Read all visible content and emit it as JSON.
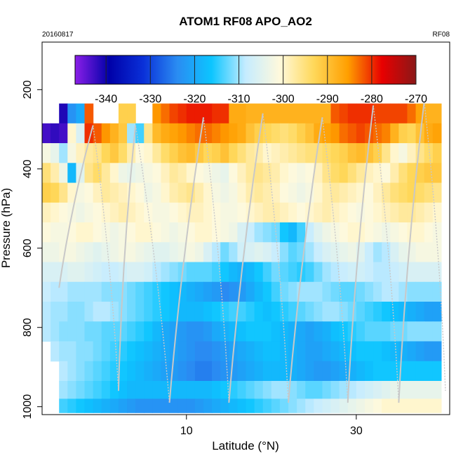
{
  "chart_data": {
    "type": "heatmap",
    "title": "ATOM1 RF08 APO_AO2",
    "left_label": "20160817",
    "right_label": "RF08",
    "xlabel": "Latitude (°N)",
    "ylabel": "Pressure (hPa)",
    "xlim": [
      -7,
      41
    ],
    "ylim": [
      1020,
      80
    ],
    "x_ticks": [
      10,
      30
    ],
    "y_ticks": [
      200,
      400,
      600,
      800,
      1000
    ],
    "colorbar": {
      "range": [
        -347,
        -270
      ],
      "ticks": [
        -340,
        -330,
        -320,
        -310,
        -300,
        -290,
        -280,
        -270
      ],
      "colors": [
        "#8b1fe8",
        "#0000a8",
        "#0a30d8",
        "#2a8cf2",
        "#0cc5ff",
        "#c5ecff",
        "#fff9dc",
        "#ffd85a",
        "#ff9f00",
        "#e80000",
        "#8a1818"
      ]
    },
    "pressure_bins": [
      210,
      260,
      310,
      360,
      410,
      460,
      510,
      560,
      610,
      660,
      710,
      760,
      810,
      860,
      910,
      960,
      1000
    ],
    "lat_step": 1,
    "lat_start": -7,
    "grid_cols": 47,
    "rows_values": [
      [
        null,
        null,
        null,
        null,
        null,
        null,
        null,
        null,
        null,
        null,
        null,
        null,
        null,
        null,
        null,
        null,
        null,
        null,
        null,
        null,
        null,
        null,
        null,
        null,
        null,
        null,
        null,
        null,
        null,
        null,
        null,
        null,
        null,
        null,
        null,
        null,
        null,
        null,
        null,
        null,
        null,
        null,
        null,
        null,
        null,
        null,
        null
      ],
      [
        null,
        null,
        -341,
        -323,
        -320,
        -282,
        null,
        null,
        null,
        -292,
        -292,
        null,
        null,
        -285,
        -283,
        -281,
        -280,
        -279,
        -279,
        -279,
        -280,
        -280,
        -287,
        -287,
        -288,
        -288,
        -288,
        -288,
        -288,
        -288,
        -288,
        -288,
        -288,
        -288,
        -282,
        -281,
        -280,
        -280,
        -280,
        -281,
        -281,
        -281,
        -281,
        -283,
        -286,
        -288,
        -288
      ],
      [
        -343,
        -342,
        -343,
        -300,
        -306,
        -280,
        -282,
        -285,
        -288,
        -291,
        -310,
        -314,
        -296,
        -289,
        -287,
        -286,
        -285,
        -284,
        -283,
        -283,
        -284,
        -285,
        -286,
        -287,
        -290,
        -292,
        -293,
        -294,
        -295,
        -294,
        -292,
        -290,
        -287,
        -286,
        -285,
        -283,
        -282,
        -281,
        -282,
        -283,
        -284,
        -288,
        -292,
        -293,
        -290,
        -287,
        -286
      ],
      [
        -302,
        -304,
        -310,
        -302,
        -299,
        -297,
        -296,
        -293,
        -291,
        -294,
        -298,
        -301,
        -300,
        -297,
        -294,
        -292,
        -290,
        -289,
        -291,
        -293,
        -292,
        -290,
        -293,
        -295,
        -297,
        -298,
        -300,
        -299,
        -298,
        -297,
        -296,
        -295,
        -295,
        -294,
        -293,
        -292,
        -290,
        -289,
        -290,
        -292,
        -296,
        -300,
        -302,
        -299,
        -296,
        -294,
        -292
      ],
      [
        -295,
        -298,
        -303,
        -318,
        -305,
        -296,
        -294,
        -297,
        -300,
        -303,
        -304,
        -303,
        -302,
        -301,
        -299,
        -297,
        -298,
        -300,
        -301,
        -302,
        -303,
        -304,
        -301,
        -299,
        -297,
        -296,
        -297,
        -298,
        -300,
        -301,
        -302,
        -301,
        -299,
        -296,
        -294,
        -293,
        -295,
        -297,
        -299,
        -300,
        -301,
        -298,
        -295,
        -293,
        -292,
        -291,
        -291
      ],
      [
        -292,
        -293,
        -296,
        -300,
        -302,
        -301,
        -299,
        -297,
        -298,
        -299,
        -300,
        -301,
        -303,
        -302,
        -300,
        -298,
        -297,
        -296,
        -298,
        -300,
        -302,
        -303,
        -302,
        -300,
        -298,
        -297,
        -298,
        -299,
        -301,
        -302,
        -303,
        -302,
        -300,
        -298,
        -297,
        -298,
        -299,
        -300,
        -301,
        -299,
        -297,
        -295,
        -294,
        -293,
        -294,
        -295,
        -296
      ],
      [
        -299,
        -300,
        -301,
        -302,
        -303,
        -302,
        -301,
        -300,
        -299,
        -298,
        -299,
        -300,
        -301,
        -302,
        -302,
        -301,
        -300,
        -299,
        -299,
        -300,
        -301,
        -302,
        -302,
        -301,
        -300,
        -299,
        -298,
        -298,
        -299,
        -300,
        -301,
        -300,
        -299,
        -298,
        -299,
        -300,
        -301,
        -302,
        -301,
        -300,
        -299,
        -298,
        -297,
        -297,
        -298,
        -299,
        -300
      ],
      [
        -301,
        -302,
        -302,
        -301,
        -300,
        -300,
        -301,
        -302,
        -303,
        -302,
        -301,
        -300,
        -300,
        -301,
        -302,
        -303,
        -302,
        -301,
        -300,
        -300,
        -301,
        -302,
        -303,
        -306,
        -308,
        -310,
        -311,
        -312,
        -316,
        -318,
        -314,
        -308,
        -305,
        -303,
        -302,
        -301,
        -300,
        -300,
        -301,
        -302,
        -303,
        -302,
        -301,
        -300,
        -300,
        -301,
        -302
      ],
      [
        -303,
        -303,
        -302,
        -302,
        -303,
        -304,
        -305,
        -304,
        -303,
        -302,
        -302,
        -303,
        -304,
        -305,
        -305,
        -304,
        -303,
        -302,
        -303,
        -306,
        -309,
        -312,
        -310,
        -307,
        -306,
        -305,
        -306,
        -308,
        -311,
        -313,
        -312,
        -310,
        -308,
        -306,
        -305,
        -304,
        -303,
        -305,
        -308,
        -310,
        -309,
        -306,
        -304,
        -303,
        -302,
        -302,
        -302
      ],
      [
        -306,
        -306,
        -306,
        -305,
        -305,
        -306,
        -307,
        -308,
        -308,
        -307,
        -306,
        -306,
        -307,
        -309,
        -310,
        -311,
        -312,
        -313,
        -313,
        -313,
        -314,
        -316,
        -318,
        -319,
        -318,
        -316,
        -314,
        -312,
        -313,
        -314,
        -315,
        -314,
        -312,
        -310,
        -309,
        -308,
        -307,
        -307,
        -308,
        -309,
        -309,
        -308,
        -307,
        -306,
        -306,
        -306,
        -306
      ],
      [
        -308,
        -309,
        -309,
        -310,
        -310,
        -310,
        -310,
        -311,
        -311,
        -311,
        -312,
        -313,
        -314,
        -315,
        -316,
        -317,
        -318,
        -319,
        -320,
        -321,
        -322,
        -324,
        -323,
        -322,
        -320,
        -318,
        -316,
        -314,
        -312,
        -311,
        -310,
        -310,
        -310,
        -311,
        -312,
        -313,
        -313,
        -312,
        -311,
        -310,
        -309,
        -309,
        -310,
        -311,
        -311,
        -311,
        -311
      ],
      [
        -309,
        -310,
        -310,
        -311,
        -311,
        -310,
        -309,
        -309,
        -310,
        -311,
        -312,
        -313,
        -314,
        -315,
        -316,
        -317,
        -318,
        -318,
        -318,
        -317,
        -316,
        -315,
        -314,
        -314,
        -315,
        -316,
        -317,
        -316,
        -315,
        -314,
        -313,
        -312,
        -311,
        -310,
        -310,
        -311,
        -312,
        -313,
        -314,
        -315,
        -316,
        -317,
        -318,
        -319,
        -320,
        -321,
        -321
      ],
      [
        -309,
        -310,
        -311,
        -311,
        -311,
        -312,
        -312,
        -313,
        -313,
        -313,
        -314,
        -315,
        -316,
        -318,
        -320,
        -321,
        -322,
        -323,
        -323,
        -322,
        -320,
        -319,
        -318,
        -317,
        -316,
        -316,
        -316,
        -317,
        -318,
        -319,
        -320,
        -321,
        -320,
        -319,
        -317,
        -316,
        -315,
        -314,
        -313,
        -313,
        -313,
        -312,
        -312,
        -311,
        -311,
        -311,
        -311
      ],
      [
        null,
        -309,
        -310,
        -310,
        -311,
        -311,
        -312,
        -313,
        -314,
        -315,
        -316,
        -317,
        -318,
        -319,
        -320,
        -321,
        -322,
        -323,
        -324,
        -324,
        -323,
        -322,
        -321,
        -320,
        -319,
        -318,
        -317,
        -317,
        -318,
        -319,
        -320,
        -321,
        -321,
        -320,
        -319,
        -318,
        -317,
        -316,
        -316,
        -316,
        -317,
        -318,
        -319,
        -320,
        -321,
        -322,
        -322
      ],
      [
        null,
        null,
        -309,
        -310,
        -311,
        -312,
        -313,
        -314,
        -315,
        -316,
        -317,
        -318,
        -319,
        -320,
        -321,
        -322,
        -323,
        -324,
        -325,
        -325,
        -324,
        -323,
        -322,
        -321,
        -320,
        -319,
        -318,
        -318,
        -318,
        -319,
        -320,
        -321,
        -322,
        -322,
        -321,
        -320,
        -319,
        -318,
        -317,
        -316,
        -316,
        -316,
        -316,
        -316,
        -316,
        -316,
        -316
      ],
      [
        null,
        null,
        -310,
        -311,
        -312,
        -313,
        -314,
        -315,
        -316,
        -317,
        -318,
        -318,
        -318,
        -318,
        -318,
        -318,
        -318,
        -318,
        -318,
        -318,
        -317,
        -316,
        -315,
        -314,
        -313,
        -312,
        -311,
        -310,
        -310,
        -311,
        -312,
        -313,
        -313,
        -312,
        -311,
        -310,
        -309,
        -308,
        -307,
        -306,
        -305,
        -304,
        -304,
        -304,
        -304,
        -304,
        -304
      ],
      [
        null,
        null,
        -314,
        -315,
        -316,
        -317,
        -318,
        -319,
        -320,
        -321,
        -322,
        -323,
        -323,
        -323,
        -323,
        -323,
        -323,
        -323,
        -322,
        -321,
        -320,
        -319,
        -318,
        -317,
        -316,
        -315,
        -314,
        -313,
        -312,
        -311,
        -310,
        -309,
        -308,
        -307,
        -306,
        -305,
        -304,
        -303,
        -302,
        -301,
        -300,
        -300,
        -300,
        -300,
        -300,
        -300,
        -300
      ]
    ]
  }
}
